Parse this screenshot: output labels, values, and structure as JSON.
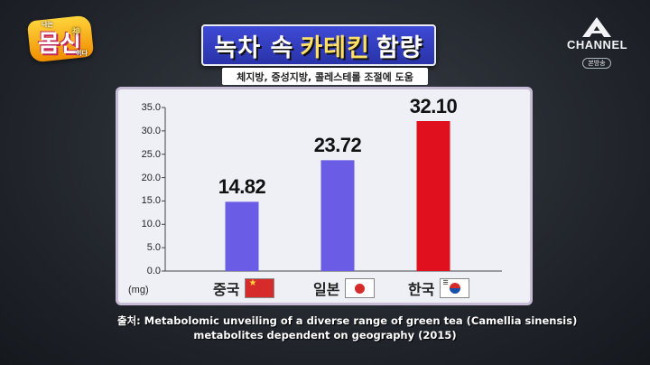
{
  "show_logo": {
    "small_top": "나는",
    "main": "몸신",
    "small_bottom": "이다",
    "mark": "神"
  },
  "channel_logo": {
    "name": "CHANNEL",
    "badge": "A",
    "sub": "본방송"
  },
  "title": {
    "part1": "녹차 속",
    "highlight": "카테킨",
    "part2": "함량"
  },
  "subtitle": "체지방, 중성지방, 콜레스테롤 조절에 도움",
  "chart_data": {
    "type": "bar",
    "title": "녹차 속 카테킨 함량",
    "categories": [
      "중국",
      "일본",
      "한국"
    ],
    "values": [
      14.82,
      23.72,
      32.1
    ],
    "value_labels": [
      "14.82",
      "23.72",
      "32.10"
    ],
    "bar_colors": [
      "#6b5ce6",
      "#6b5ce6",
      "#e0101f"
    ],
    "flags": [
      "china-flag-icon",
      "japan-flag-icon",
      "korea-flag-icon"
    ],
    "ylabel": "(mg)",
    "ylim": [
      0,
      35
    ],
    "yticks": [
      "35.0",
      "30.0",
      "25.0",
      "20.0",
      "15.0",
      "10.0",
      "5.0",
      "0.0"
    ],
    "grid": false,
    "legend": "none"
  },
  "source": {
    "line1": "출처: Metabolomic unveiling of a diverse range of green tea (Camellia sinensis)",
    "line2": "metabolites dependent on geography (2015)"
  },
  "colors": {
    "title_bg": "#2f3ab8",
    "title_highlight": "#ffe066",
    "panel_bg": "#eef0f6"
  }
}
